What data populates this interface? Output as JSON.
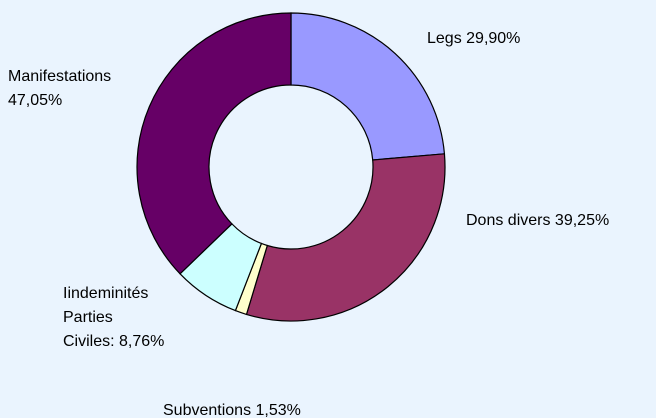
{
  "chart_data": {
    "type": "donut",
    "values": [
      29.9,
      39.25,
      1.53,
      8.76,
      47.05
    ],
    "value_labels": [
      [
        "Legs 29,90%"
      ],
      [
        "Dons divers 39,25%"
      ],
      [
        "Subventions 1,53%"
      ],
      [
        "Iindeminités",
        "Parties",
        "Civiles: 8,76%"
      ],
      [
        "Manifestations",
        "47,05%"
      ]
    ],
    "colors": [
      "#9999ff",
      "#993366",
      "#ffffcc",
      "#ccffff",
      "#660066"
    ]
  }
}
